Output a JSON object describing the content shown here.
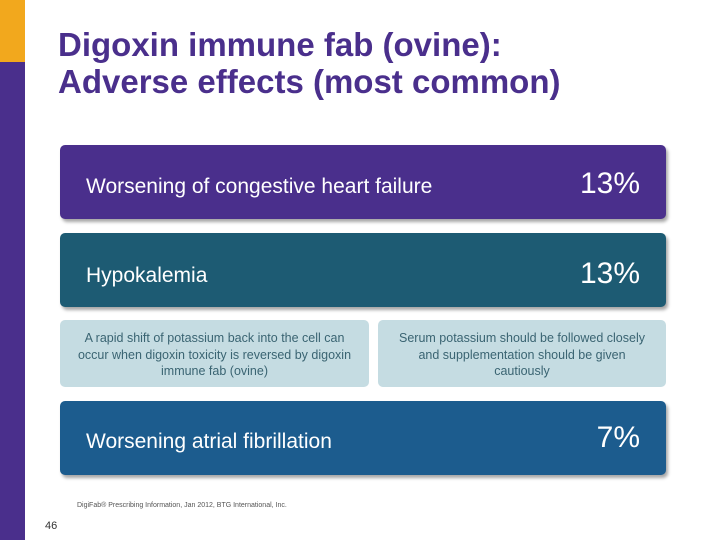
{
  "slide": {
    "title_line1": "Digoxin immune fab (ovine):",
    "title_line2": "Adverse effects (most common)",
    "page_number": "46",
    "footnote": "DigiFab® Prescribing Information, Jan 2012, BTG International, Inc."
  },
  "effects": [
    {
      "label": "Worsening of congestive heart failure",
      "value": "13%"
    },
    {
      "label": "Hypokalemia",
      "value": "13%"
    },
    {
      "label": "Worsening atrial fibrillation",
      "value": "7%"
    }
  ],
  "notes": {
    "left": "A rapid shift of potassium back into the cell can occur when digoxin toxicity is reversed by digoxin immune fab (ovine)",
    "right": "Serum potassium should be followed closely and supplementation should be given cautiously"
  },
  "colors": {
    "purple": "#4a2f8c",
    "orange": "#f2a81d",
    "teal": "#1d5b73",
    "blue": "#1c5c8e",
    "note_bg": "#c5dce2"
  }
}
